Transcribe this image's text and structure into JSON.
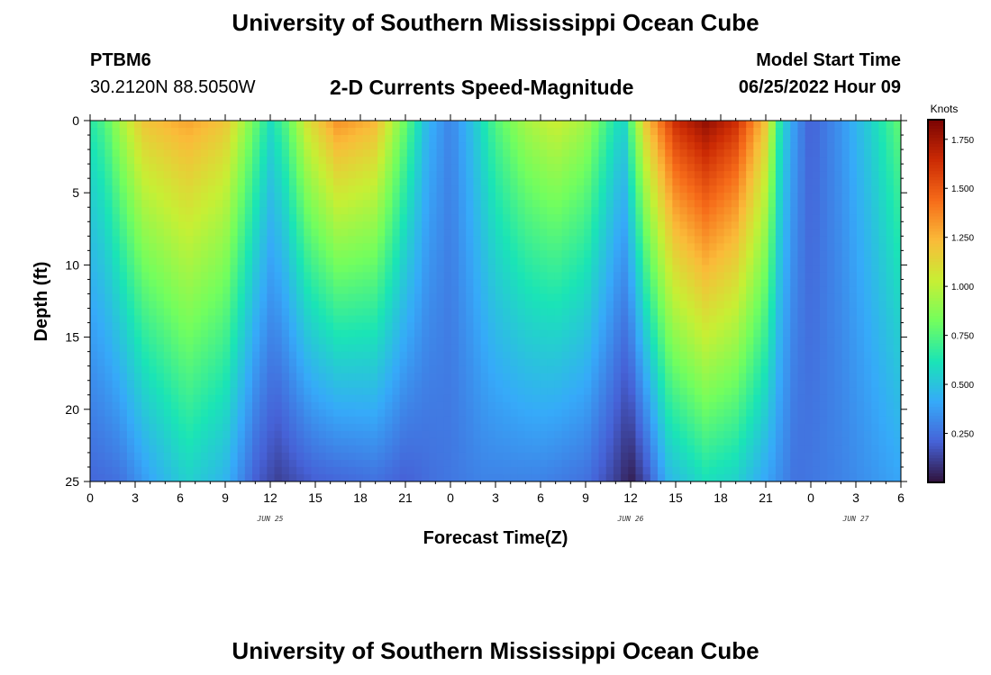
{
  "header": {
    "title": "University of Southern Mississippi Ocean Cube",
    "station_id": "PTBM6",
    "coordinates": "30.2120N  88.5050W",
    "product": "2-D Currents Speed-Magnitude",
    "model_start_label": "Model Start Time",
    "model_start_value": "06/25/2022 Hour 09"
  },
  "footer": {
    "title": "University of Southern Mississippi Ocean Cube"
  },
  "chart_data": {
    "type": "heatmap",
    "title": "2-D Currents Speed-Magnitude",
    "xlabel": "Forecast Time(Z)",
    "ylabel": "Depth (ft)",
    "x_range_hours": [
      0,
      54
    ],
    "y_range_ft": [
      0,
      25
    ],
    "y_inverted": true,
    "x_tick_labels": [
      "0",
      "3",
      "6",
      "9",
      "12",
      "15",
      "18",
      "21",
      "0",
      "3",
      "6",
      "9",
      "12",
      "15",
      "18",
      "21",
      "0",
      "3",
      "6"
    ],
    "y_tick_labels": [
      "0",
      "5",
      "10",
      "15",
      "20",
      "25"
    ],
    "date_labels": [
      {
        "text": "JUN 25",
        "hour": 12
      },
      {
        "text": "JUN 26",
        "hour": 36
      },
      {
        "text": "JUN 27",
        "hour": 51
      }
    ],
    "colorbar": {
      "units": "Knots",
      "range": [
        0,
        1.85
      ],
      "tick_values": [
        0.25,
        0.5,
        0.75,
        1.0,
        1.25,
        1.5,
        1.75
      ],
      "tick_labels": [
        "0.250",
        "0.500",
        "0.750",
        "1.000",
        "1.250",
        "1.500",
        "1.750"
      ],
      "colors": [
        "#30123b",
        "#4662d7",
        "#36aaf9",
        "#1ae4b6",
        "#72fe5e",
        "#c7ef34",
        "#fabb39",
        "#f66b19",
        "#cb2a04",
        "#7a0403"
      ]
    },
    "surface_speed_knots": [
      {
        "hour": 0,
        "value": 0.65
      },
      {
        "hour": 1,
        "value": 0.75
      },
      {
        "hour": 2,
        "value": 0.95
      },
      {
        "hour": 3.5,
        "value": 1.2
      },
      {
        "hour": 6.5,
        "value": 1.3
      },
      {
        "hour": 9,
        "value": 1.2
      },
      {
        "hour": 10.5,
        "value": 0.9
      },
      {
        "hour": 12,
        "value": 0.6
      },
      {
        "hour": 13,
        "value": 0.75
      },
      {
        "hour": 14.5,
        "value": 1.1
      },
      {
        "hour": 16.5,
        "value": 1.35
      },
      {
        "hour": 19,
        "value": 1.25
      },
      {
        "hour": 21,
        "value": 0.8
      },
      {
        "hour": 22.5,
        "value": 0.45
      },
      {
        "hour": 24,
        "value": 0.3
      },
      {
        "hour": 25.5,
        "value": 0.5
      },
      {
        "hour": 27,
        "value": 0.75
      },
      {
        "hour": 29,
        "value": 0.95
      },
      {
        "hour": 31,
        "value": 1.05
      },
      {
        "hour": 33,
        "value": 0.95
      },
      {
        "hour": 34.5,
        "value": 0.7
      },
      {
        "hour": 35.5,
        "value": 0.55
      },
      {
        "hour": 37,
        "value": 1.2
      },
      {
        "hour": 39,
        "value": 1.65
      },
      {
        "hour": 41,
        "value": 1.8
      },
      {
        "hour": 43,
        "value": 1.65
      },
      {
        "hour": 45,
        "value": 1.2
      },
      {
        "hour": 46,
        "value": 0.6
      },
      {
        "hour": 47,
        "value": 0.35
      },
      {
        "hour": 48,
        "value": 0.2
      },
      {
        "hour": 50,
        "value": 0.35
      },
      {
        "hour": 52,
        "value": 0.55
      },
      {
        "hour": 54,
        "value": 0.8
      }
    ],
    "bottom_speed_knots": [
      {
        "hour": 0,
        "value": 0.22
      },
      {
        "hour": 2,
        "value": 0.25
      },
      {
        "hour": 4,
        "value": 0.4
      },
      {
        "hour": 6.5,
        "value": 0.55
      },
      {
        "hour": 9,
        "value": 0.45
      },
      {
        "hour": 11,
        "value": 0.2
      },
      {
        "hour": 12.5,
        "value": 0.12
      },
      {
        "hour": 15,
        "value": 0.2
      },
      {
        "hour": 19,
        "value": 0.25
      },
      {
        "hour": 21,
        "value": 0.2
      },
      {
        "hour": 23,
        "value": 0.25
      },
      {
        "hour": 26,
        "value": 0.3
      },
      {
        "hour": 30,
        "value": 0.3
      },
      {
        "hour": 33,
        "value": 0.25
      },
      {
        "hour": 35,
        "value": 0.12
      },
      {
        "hour": 36,
        "value": 0.03
      },
      {
        "hour": 37,
        "value": 0.15
      },
      {
        "hour": 38.5,
        "value": 0.45
      },
      {
        "hour": 41,
        "value": 0.6
      },
      {
        "hour": 43,
        "value": 0.55
      },
      {
        "hour": 45,
        "value": 0.4
      },
      {
        "hour": 47,
        "value": 0.25
      },
      {
        "hour": 50,
        "value": 0.3
      },
      {
        "hour": 54,
        "value": 0.4
      }
    ]
  }
}
